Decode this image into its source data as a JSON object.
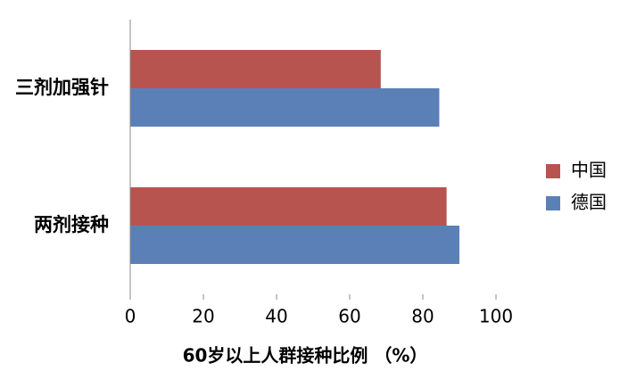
{
  "chart_data": {
    "type": "hbar",
    "xlabel": "60岁以上人群接种比例 （%）",
    "categories": [
      "三剂加强针",
      "两剂接种"
    ],
    "series": [
      {
        "name": "中国",
        "color": "#b85450",
        "values": [
          68.5,
          86.5
        ]
      },
      {
        "name": "德国",
        "color": "#5b80b8",
        "values": [
          84.5,
          90
        ]
      }
    ],
    "xlim": [
      0,
      100
    ],
    "xticks": [
      0,
      20,
      40,
      60,
      80,
      100
    ],
    "legend": "right"
  }
}
